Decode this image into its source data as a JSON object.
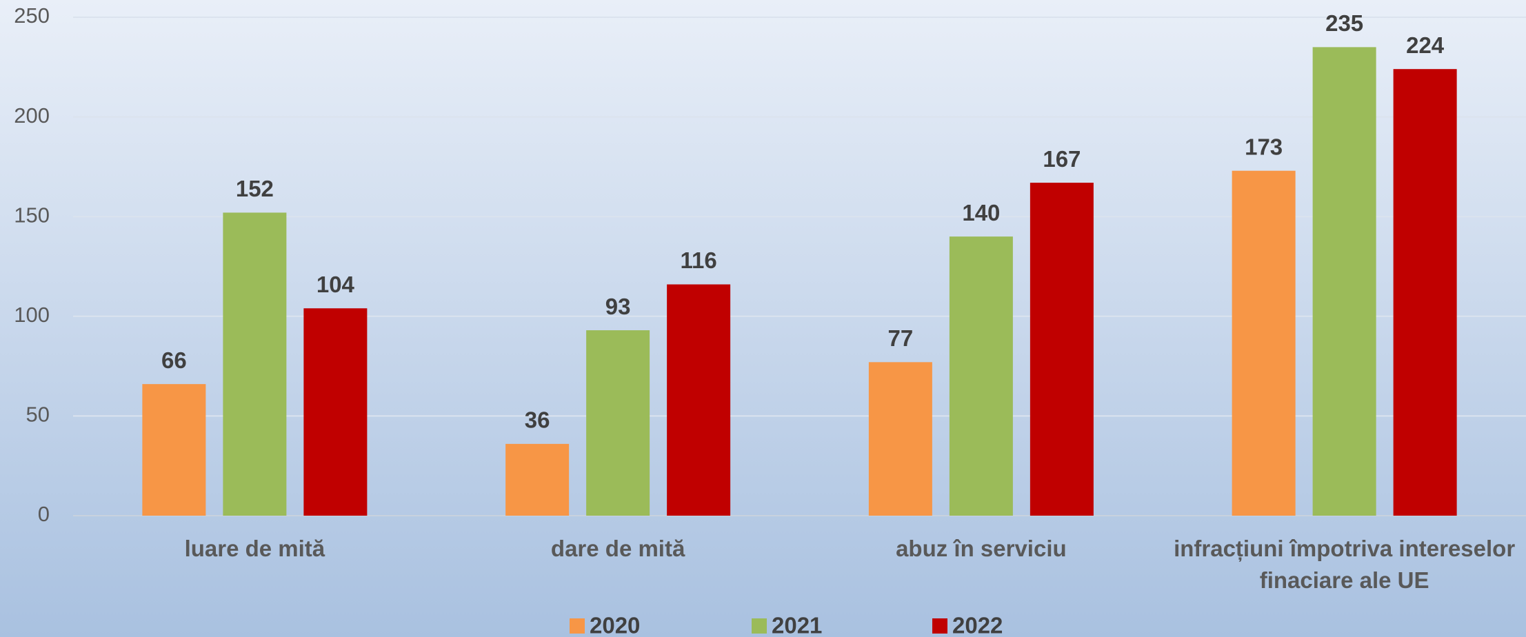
{
  "chart_data": {
    "type": "bar",
    "categories": [
      "luare de mită",
      "dare de mită",
      "abuz în serviciu",
      "infracțiuni împotriva intereselor finaciare ale UE"
    ],
    "series": [
      {
        "name": "2020",
        "color": "#f79646",
        "values": [
          66,
          36,
          77,
          173
        ]
      },
      {
        "name": "2021",
        "color": "#9bbb59",
        "values": [
          152,
          93,
          140,
          235
        ]
      },
      {
        "name": "2022",
        "color": "#c00000",
        "values": [
          104,
          116,
          167,
          224
        ]
      }
    ],
    "ylim": [
      0,
      250
    ],
    "yticks": [
      0,
      50,
      100,
      150,
      200,
      250
    ],
    "grid": true,
    "legend": "bottom"
  }
}
